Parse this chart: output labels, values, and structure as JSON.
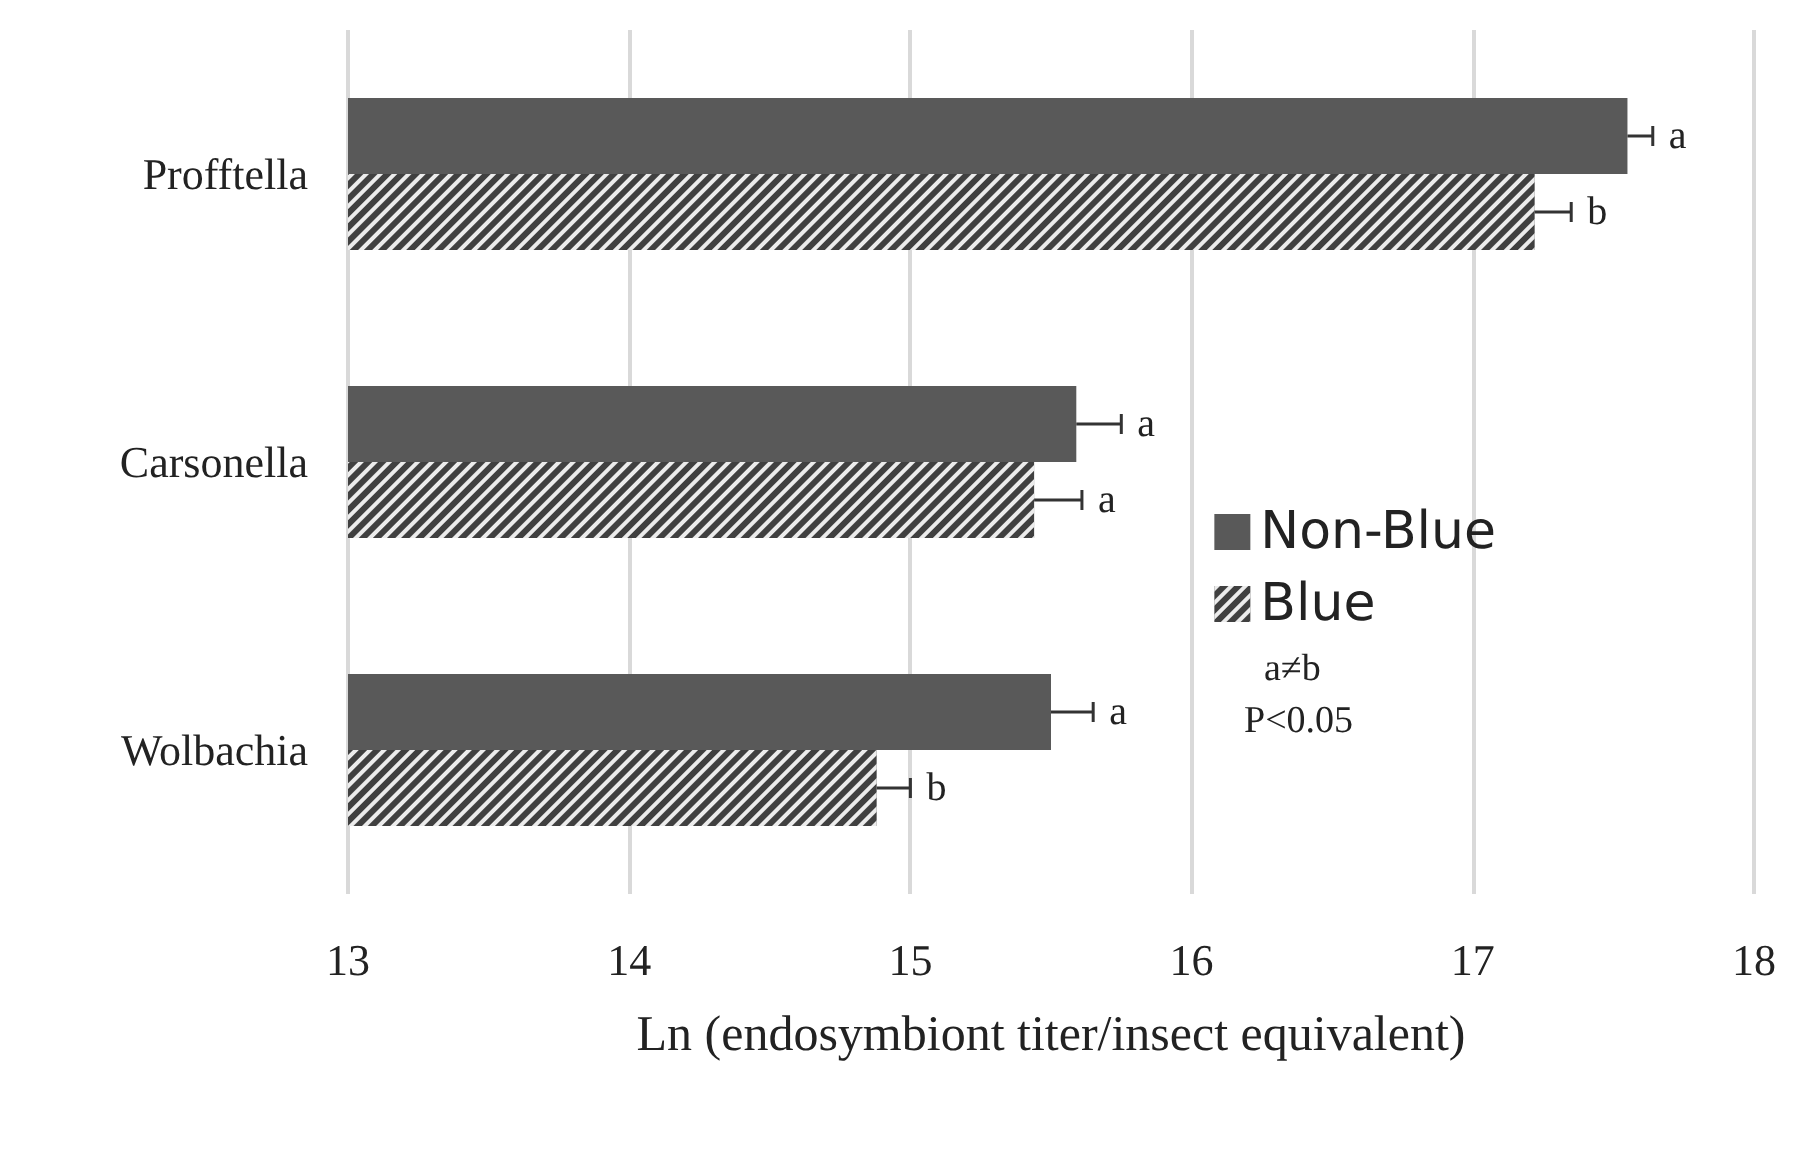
{
  "chart_data": {
    "type": "bar",
    "orientation": "horizontal",
    "xlabel": "Ln (endosymbiont titer/insect equivalent)",
    "categories": [
      "Profftella",
      "Carsonella",
      "Wolbachia"
    ],
    "series": [
      {
        "name": "Non-Blue",
        "color": "#595959",
        "values": [
          17.55,
          15.59,
          15.5
        ],
        "errors": [
          [
            17.55,
            17.64
          ],
          [
            15.59,
            15.75
          ],
          [
            15.5,
            15.65
          ]
        ],
        "value_labels": [
          "a",
          "a",
          "a"
        ]
      },
      {
        "name": "Blue",
        "color": "#404040",
        "values": [
          17.22,
          15.44,
          14.88
        ],
        "errors": [
          [
            17.22,
            17.35
          ],
          [
            15.44,
            15.61
          ],
          [
            14.88,
            15
          ]
        ],
        "value_labels": [
          "b",
          "a",
          "b"
        ]
      }
    ],
    "xlim": [
      13,
      18
    ],
    "xticks": [
      13,
      14,
      15,
      16,
      17,
      18
    ],
    "grid": "x",
    "legend": "right",
    "annotations": [
      "a≠b",
      "P<0.05"
    ]
  }
}
